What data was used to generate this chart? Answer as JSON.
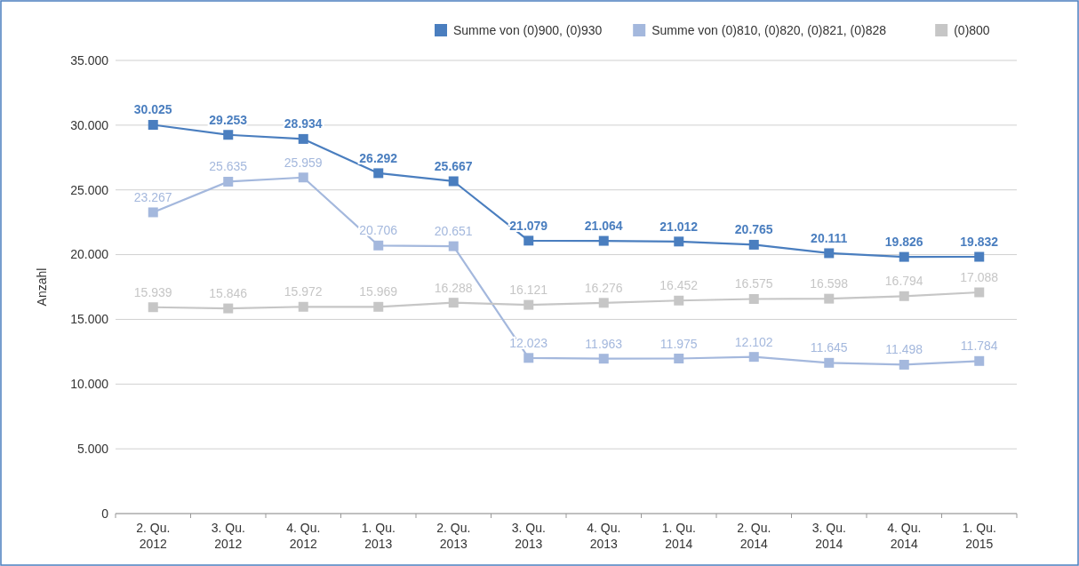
{
  "chart_data": {
    "type": "line",
    "ylabel": "Anzahl",
    "categories": [
      "2. Qu. 2012",
      "3. Qu. 2012",
      "4. Qu. 2012",
      "1. Qu. 2013",
      "2. Qu. 2013",
      "3. Qu. 2013",
      "4. Qu. 2013",
      "1. Qu. 2014",
      "2. Qu. 2014",
      "3. Qu. 2014",
      "4. Qu. 2014",
      "1. Qu. 2015"
    ],
    "series": [
      {
        "name": "Summe von (0)900, (0)930",
        "color": "#4a7ebf",
        "values": [
          30025,
          29253,
          28934,
          26292,
          25667,
          21079,
          21064,
          21012,
          20765,
          20111,
          19826,
          19832
        ],
        "value_labels": [
          "30.025",
          "29.253",
          "28.934",
          "26.292",
          "25.667",
          "21.079",
          "21.064",
          "21.012",
          "20.765",
          "20.111",
          "19.826",
          "19.832"
        ]
      },
      {
        "name": "Summe von (0)810, (0)820, (0)821, (0)828",
        "color": "#a4b8dd",
        "values": [
          23267,
          25635,
          25959,
          20706,
          20651,
          12023,
          11963,
          11975,
          12102,
          11645,
          11498,
          11784
        ],
        "value_labels": [
          "23.267",
          "25.635",
          "25.959",
          "20.706",
          "20.651",
          "12.023",
          "11.963",
          "11.975",
          "12.102",
          "11.645",
          "11.498",
          "11.784"
        ]
      },
      {
        "name": "(0)800",
        "color": "#c6c6c6",
        "values": [
          15939,
          15846,
          15972,
          15969,
          16288,
          16121,
          16276,
          16452,
          16575,
          16598,
          16794,
          17088
        ],
        "value_labels": [
          "15.939",
          "15.846",
          "15.972",
          "15.969",
          "16.288",
          "16.121",
          "16.276",
          "16.452",
          "16.575",
          "16.598",
          "16.794",
          "17.088"
        ]
      }
    ],
    "ylim": [
      0,
      35000
    ],
    "yticks": [
      {
        "value": 0,
        "label": "0"
      },
      {
        "value": 5000,
        "label": "5.000"
      },
      {
        "value": 10000,
        "label": "10.000"
      },
      {
        "value": 15000,
        "label": "15.000"
      },
      {
        "value": 20000,
        "label": "20.000"
      },
      {
        "value": 25000,
        "label": "25.000"
      },
      {
        "value": 30000,
        "label": "30.000"
      },
      {
        "value": 35000,
        "label": "35.000"
      }
    ],
    "grid": "y",
    "legend": "top right",
    "marker": "square",
    "line_style": "solid"
  }
}
